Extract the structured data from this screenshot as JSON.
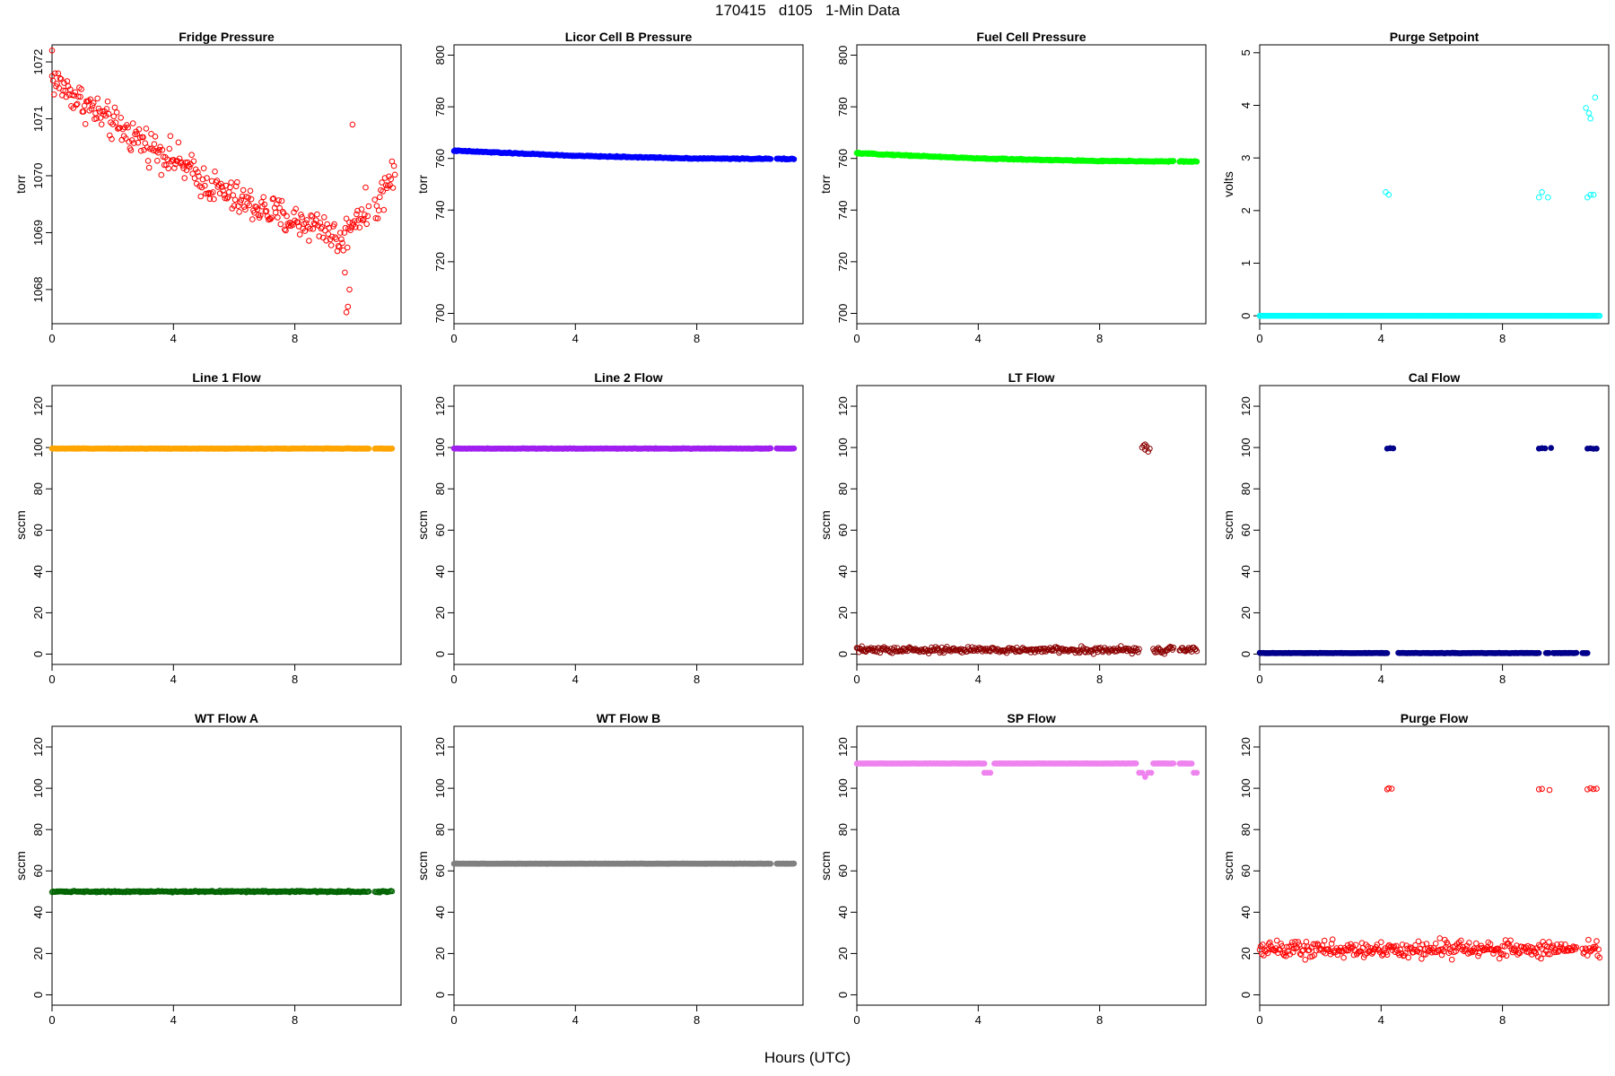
{
  "title": "170415   d105   1-Min Data",
  "x_axis_label": "Hours (UTC)",
  "chart_data": [
    {
      "type": "scatter",
      "title": "Fridge Pressure",
      "ylabel": "torr",
      "xlim": [
        0,
        11.5
      ],
      "ylim": [
        1067.4,
        1072.3
      ],
      "yticks": [
        1068,
        1069,
        1070,
        1071,
        1072
      ],
      "xticks": [
        0,
        4,
        8
      ],
      "color": "#ff0000",
      "filled": false,
      "trend": [
        [
          0,
          1071.7
        ],
        [
          1,
          1071.3
        ],
        [
          2,
          1070.9
        ],
        [
          3,
          1070.6
        ],
        [
          4,
          1070.3
        ],
        [
          5,
          1069.9
        ],
        [
          6,
          1069.6
        ],
        [
          7,
          1069.4
        ],
        [
          8,
          1069.2
        ],
        [
          9,
          1069.1
        ],
        [
          9.5,
          1068.8
        ],
        [
          10,
          1069.3
        ],
        [
          10.6,
          1069.4
        ],
        [
          11,
          1069.8
        ],
        [
          11.3,
          1070.1
        ]
      ],
      "noise": 0.45,
      "gaps": [
        [
          10.45,
          10.6
        ]
      ],
      "outliers": [
        [
          9.7,
          1067.6
        ],
        [
          9.75,
          1067.7
        ],
        [
          9.8,
          1068.0
        ],
        [
          9.65,
          1068.3
        ],
        [
          9.9,
          1070.9
        ],
        [
          0,
          1072.2
        ]
      ]
    },
    {
      "type": "scatter",
      "title": "Licor Cell B Pressure",
      "ylabel": "torr",
      "xlim": [
        0,
        11.5
      ],
      "ylim": [
        696,
        804
      ],
      "yticks": [
        700,
        720,
        740,
        760,
        780,
        800
      ],
      "xticks": [
        0,
        4,
        8
      ],
      "color": "#0000ff",
      "filled": true,
      "trend": [
        [
          0,
          763
        ],
        [
          4,
          761
        ],
        [
          8,
          760
        ],
        [
          11.2,
          759.8
        ]
      ],
      "noise": 0.3,
      "gaps": [
        [
          10.45,
          10.6
        ]
      ],
      "outliers": []
    },
    {
      "type": "scatter",
      "title": "Fuel Cell Pressure",
      "ylabel": "torr",
      "xlim": [
        0,
        11.5
      ],
      "ylim": [
        696,
        804
      ],
      "yticks": [
        700,
        720,
        740,
        760,
        780,
        800
      ],
      "xticks": [
        0,
        4,
        8
      ],
      "color": "#00ff00",
      "filled": true,
      "trend": [
        [
          0,
          762
        ],
        [
          4,
          760
        ],
        [
          8,
          759
        ],
        [
          11.2,
          758.8
        ]
      ],
      "noise": 0.3,
      "gaps": [
        [
          10.45,
          10.6
        ]
      ],
      "outliers": []
    },
    {
      "type": "scatter",
      "title": "Purge Setpoint",
      "ylabel": "volts",
      "xlim": [
        0,
        11.5
      ],
      "ylim": [
        -0.15,
        5.15
      ],
      "yticks": [
        0,
        1,
        2,
        3,
        4,
        5
      ],
      "xticks": [
        0,
        4,
        8
      ],
      "color": "#00ffff",
      "filled": false,
      "trend": [
        [
          0,
          0
        ],
        [
          11.2,
          0
        ]
      ],
      "noise": 0,
      "gaps": [],
      "outliers": [
        [
          4.15,
          2.35
        ],
        [
          4.25,
          2.3
        ],
        [
          9.2,
          2.25
        ],
        [
          9.3,
          2.35
        ],
        [
          9.5,
          2.25
        ],
        [
          10.8,
          2.25
        ],
        [
          10.9,
          2.3
        ],
        [
          11.0,
          2.3
        ],
        [
          10.75,
          3.95
        ],
        [
          10.85,
          3.85
        ],
        [
          10.9,
          3.75
        ],
        [
          11.05,
          4.15
        ]
      ]
    },
    {
      "type": "scatter",
      "title": "Line 1 Flow",
      "ylabel": "sccm",
      "xlim": [
        0,
        11.5
      ],
      "ylim": [
        -5,
        130
      ],
      "yticks": [
        0,
        20,
        40,
        60,
        80,
        100,
        120
      ],
      "xticks": [
        0,
        4,
        8
      ],
      "color": "#ffa500",
      "filled": true,
      "trend": [
        [
          0,
          99.5
        ],
        [
          11.2,
          99.5
        ]
      ],
      "noise": 0.2,
      "gaps": [
        [
          10.45,
          10.6
        ]
      ],
      "outliers": []
    },
    {
      "type": "scatter",
      "title": "Line 2 Flow",
      "ylabel": "sccm",
      "xlim": [
        0,
        11.5
      ],
      "ylim": [
        -5,
        130
      ],
      "yticks": [
        0,
        20,
        40,
        60,
        80,
        100,
        120
      ],
      "xticks": [
        0,
        4,
        8
      ],
      "color": "#a020f0",
      "filled": true,
      "trend": [
        [
          0,
          99.5
        ],
        [
          11.2,
          99.5
        ]
      ],
      "noise": 0.2,
      "gaps": [
        [
          10.45,
          10.6
        ]
      ],
      "outliers": []
    },
    {
      "type": "scatter",
      "title": "LT Flow",
      "ylabel": "sccm",
      "xlim": [
        0,
        11.5
      ],
      "ylim": [
        -5,
        130
      ],
      "yticks": [
        0,
        20,
        40,
        60,
        80,
        100,
        120
      ],
      "xticks": [
        0,
        4,
        8
      ],
      "color": "#8b0000",
      "filled": false,
      "trend": [
        [
          0,
          2
        ],
        [
          11.2,
          2
        ]
      ],
      "noise": 2.2,
      "gaps": [
        [
          9.3,
          9.75
        ],
        [
          10.45,
          10.6
        ]
      ],
      "outliers": [
        [
          9.4,
          100
        ],
        [
          9.45,
          101
        ],
        [
          9.5,
          99
        ],
        [
          9.55,
          100.5
        ],
        [
          9.6,
          98
        ],
        [
          9.65,
          99.5
        ],
        [
          9.5,
          101.5
        ]
      ]
    },
    {
      "type": "scatter",
      "title": "Cal Flow",
      "ylabel": "sccm",
      "xlim": [
        0,
        11.5
      ],
      "ylim": [
        -5,
        130
      ],
      "yticks": [
        0,
        20,
        40,
        60,
        80,
        100,
        120
      ],
      "xticks": [
        0,
        4,
        8
      ],
      "color": "#00008b",
      "filled": true,
      "trend": [
        [
          0,
          0.5
        ],
        [
          11.2,
          0.5
        ]
      ],
      "noise": 0.15,
      "gaps": [
        [
          4.2,
          4.55
        ],
        [
          9.2,
          9.4
        ],
        [
          9.55,
          9.65
        ],
        [
          10.45,
          10.6
        ],
        [
          10.8,
          11.3
        ]
      ],
      "outliers": [
        [
          4.2,
          99.5
        ],
        [
          4.3,
          99.7
        ],
        [
          4.4,
          99.6
        ],
        [
          9.2,
          99.5
        ],
        [
          9.3,
          99.7
        ],
        [
          9.4,
          99.6
        ],
        [
          9.6,
          99.8
        ],
        [
          10.8,
          99.5
        ],
        [
          10.9,
          99.6
        ],
        [
          11.0,
          99.4
        ],
        [
          11.1,
          99.5
        ]
      ]
    },
    {
      "type": "scatter",
      "title": "WT Flow A",
      "ylabel": "sccm",
      "xlim": [
        0,
        11.5
      ],
      "ylim": [
        -5,
        130
      ],
      "yticks": [
        0,
        20,
        40,
        60,
        80,
        100,
        120
      ],
      "xticks": [
        0,
        4,
        8
      ],
      "color": "#006400",
      "filled": false,
      "trend": [
        [
          0,
          50
        ],
        [
          11.2,
          50
        ]
      ],
      "noise": 0.5,
      "gaps": [
        [
          10.45,
          10.6
        ]
      ],
      "outliers": []
    },
    {
      "type": "scatter",
      "title": "WT Flow B",
      "ylabel": "sccm",
      "xlim": [
        0,
        11.5
      ],
      "ylim": [
        -5,
        130
      ],
      "yticks": [
        0,
        20,
        40,
        60,
        80,
        100,
        120
      ],
      "xticks": [
        0,
        4,
        8
      ],
      "color": "#808080",
      "filled": true,
      "trend": [
        [
          0,
          63.5
        ],
        [
          11.2,
          63.5
        ]
      ],
      "noise": 0.1,
      "gaps": [
        [
          10.45,
          10.6
        ]
      ],
      "outliers": []
    },
    {
      "type": "scatter",
      "title": "SP Flow",
      "ylabel": "sccm",
      "xlim": [
        0,
        11.5
      ],
      "ylim": [
        -5,
        130
      ],
      "yticks": [
        0,
        20,
        40,
        60,
        80,
        100,
        120
      ],
      "xticks": [
        0,
        4,
        8
      ],
      "color": "#ee82ee",
      "filled": true,
      "trend": [
        [
          0,
          112
        ],
        [
          11.2,
          112
        ]
      ],
      "noise": 0.1,
      "gaps": [
        [
          4.2,
          4.5
        ],
        [
          9.2,
          9.75
        ],
        [
          10.45,
          10.6
        ],
        [
          11.05,
          11.3
        ]
      ],
      "outliers": [
        [
          4.2,
          107.5
        ],
        [
          4.3,
          107.5
        ],
        [
          4.4,
          107.5
        ],
        [
          9.3,
          107.5
        ],
        [
          9.4,
          107.5
        ],
        [
          9.5,
          105.5
        ],
        [
          9.6,
          107.5
        ],
        [
          9.7,
          107.5
        ],
        [
          11.1,
          107.5
        ],
        [
          11.2,
          107.5
        ]
      ]
    },
    {
      "type": "scatter",
      "title": "Purge Flow",
      "ylabel": "sccm",
      "xlim": [
        0,
        11.5
      ],
      "ylim": [
        -5,
        130
      ],
      "yticks": [
        0,
        20,
        40,
        60,
        80,
        100,
        120
      ],
      "xticks": [
        0,
        4,
        8
      ],
      "color": "#ff0000",
      "filled": false,
      "trend": [
        [
          0,
          22
        ],
        [
          11.2,
          22
        ]
      ],
      "noise": 6,
      "gaps": [
        [
          10.45,
          10.6
        ]
      ],
      "outliers": [
        [
          4.2,
          99.5
        ],
        [
          4.25,
          100
        ],
        [
          4.35,
          99.8
        ],
        [
          9.2,
          99.5
        ],
        [
          9.3,
          99.7
        ],
        [
          9.55,
          99.2
        ],
        [
          10.8,
          99.5
        ],
        [
          10.9,
          100
        ],
        [
          11.0,
          99.6
        ],
        [
          11.1,
          99.8
        ]
      ]
    }
  ]
}
